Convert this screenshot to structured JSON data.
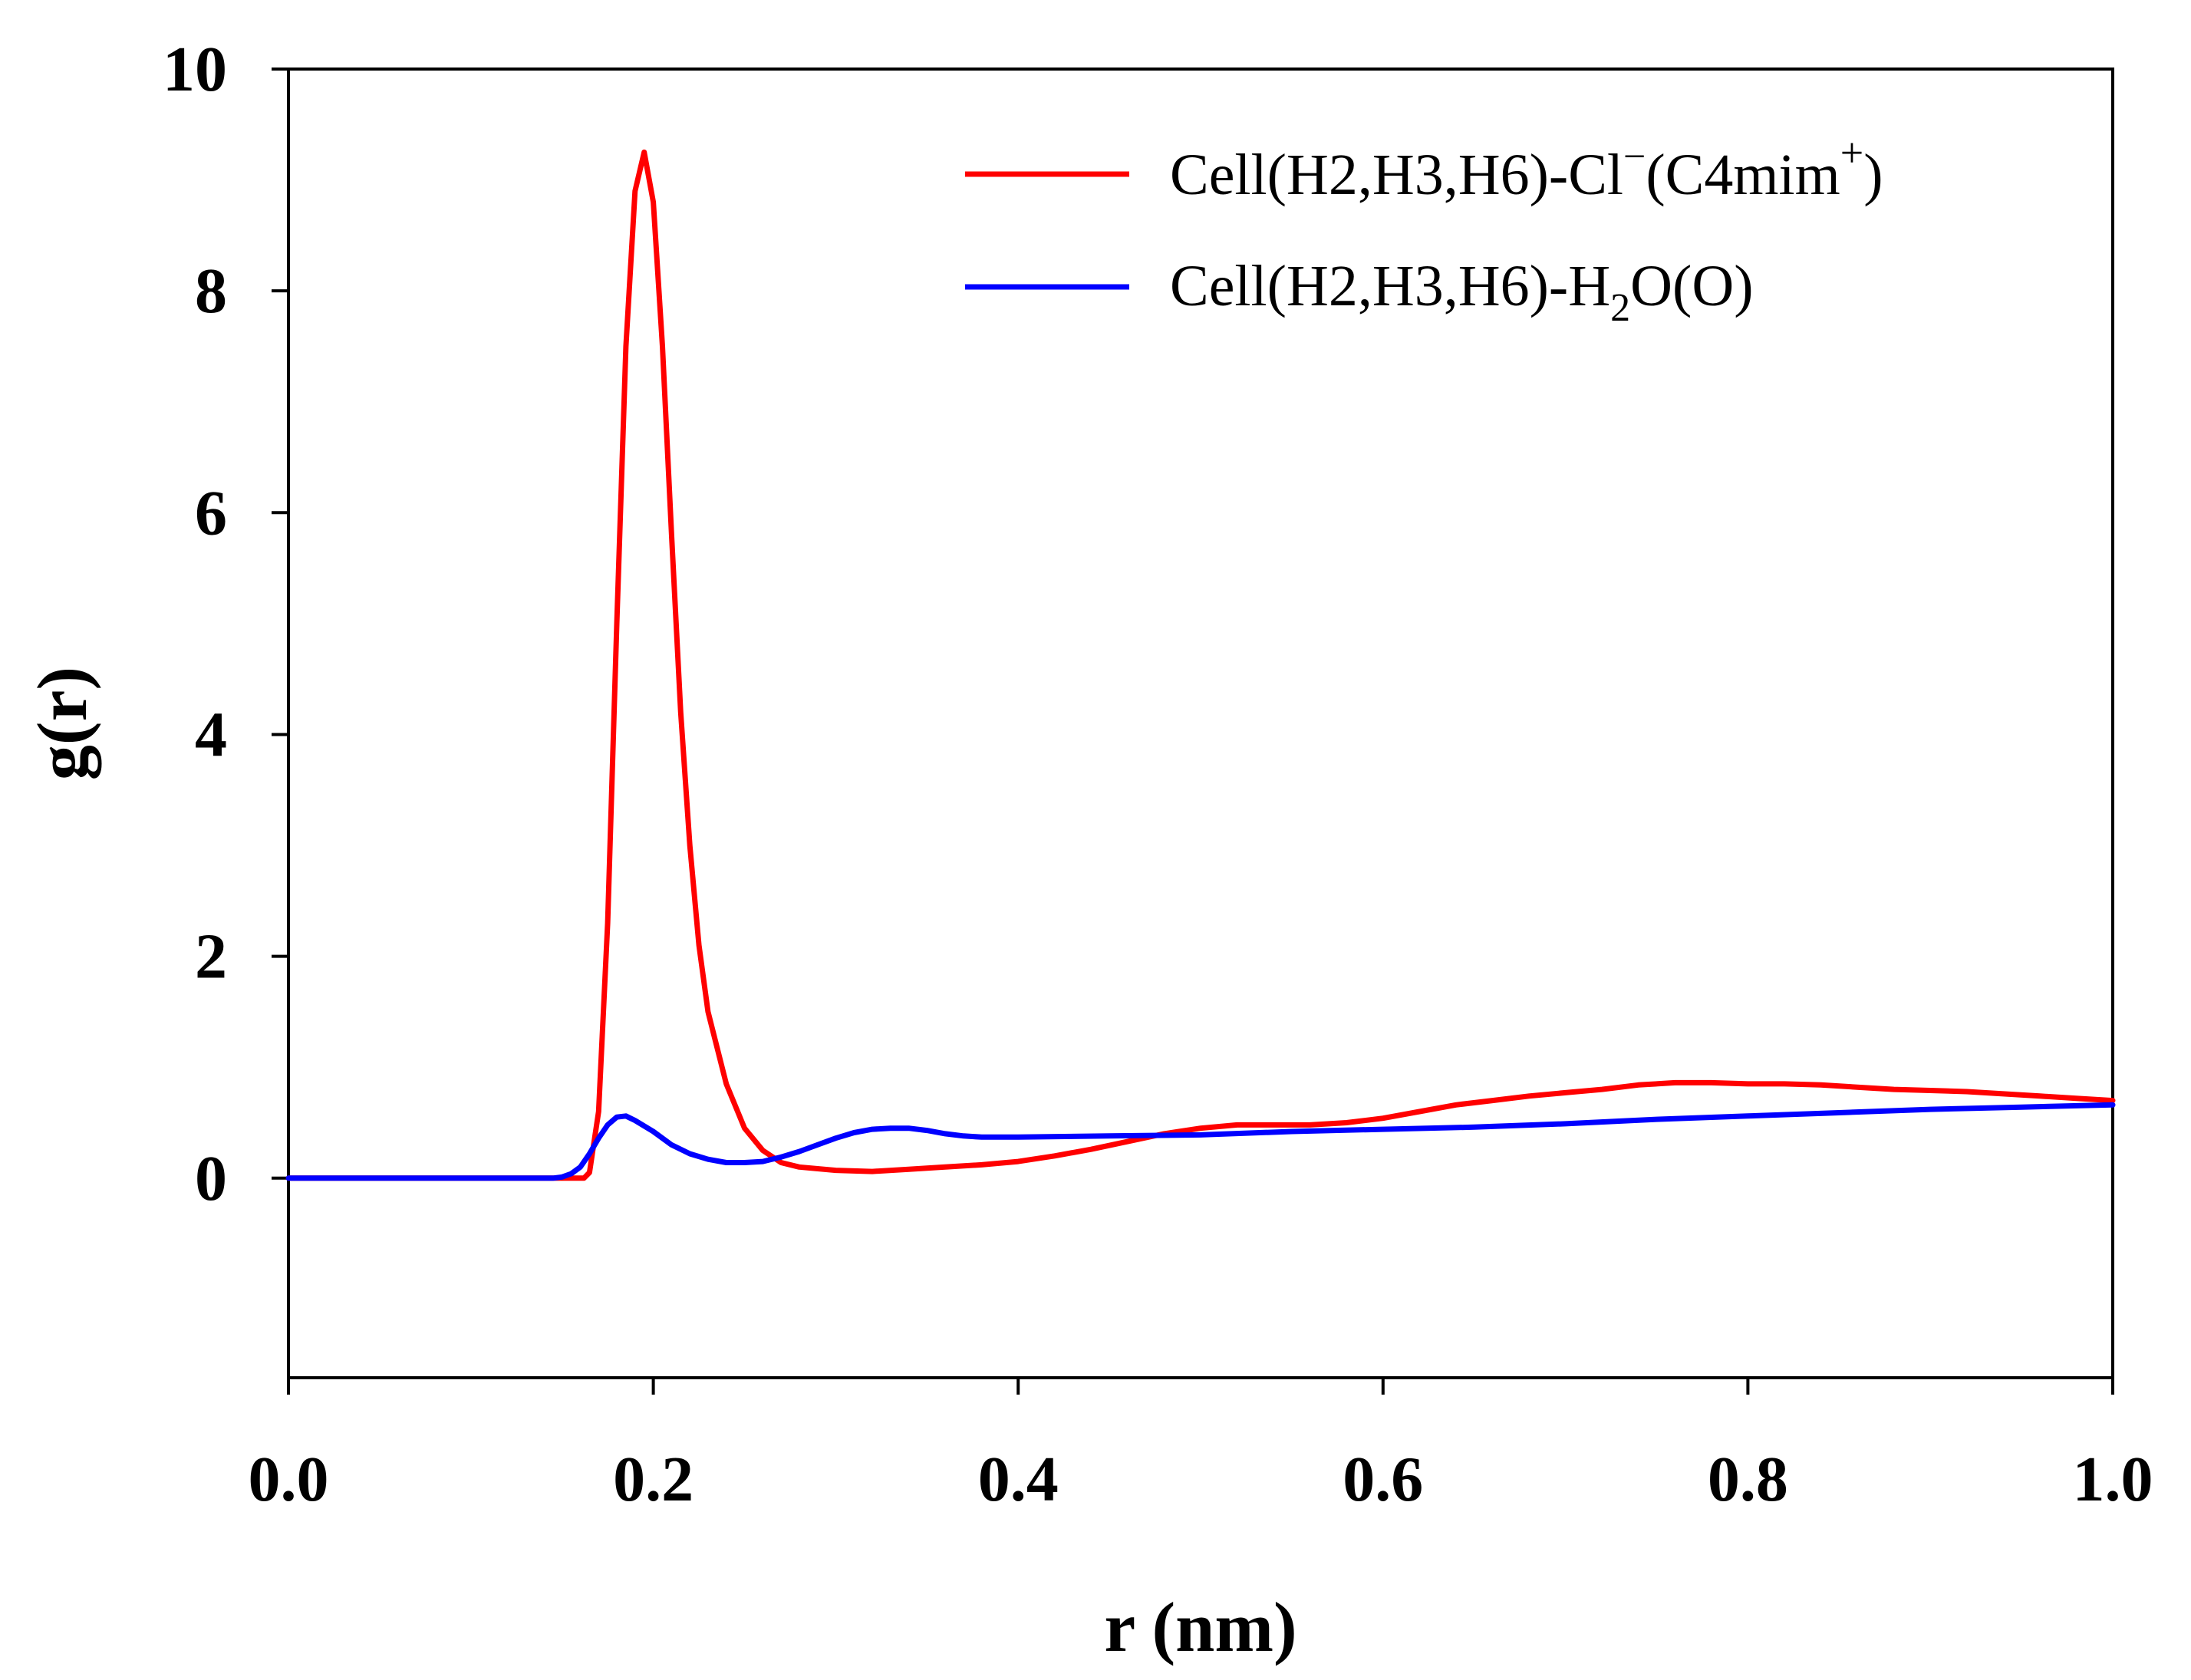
{
  "chart_data": {
    "type": "line",
    "title": "",
    "xlabel": "r (nm)",
    "ylabel": "g(r)",
    "xlim": [
      0.0,
      1.0
    ],
    "ylim": [
      -1.8,
      10
    ],
    "x_ticks": [
      0.0,
      0.2,
      0.4,
      0.6,
      0.8,
      1.0
    ],
    "x_tick_labels": [
      "0.0",
      "0.2",
      "0.4",
      "0.6",
      "0.8",
      "1.0"
    ],
    "y_ticks": [
      0,
      2,
      4,
      6,
      8,
      10
    ],
    "y_tick_labels": [
      "0",
      "2",
      "4",
      "6",
      "8",
      "10"
    ],
    "grid": false,
    "legend_position": "top-right",
    "series": [
      {
        "name": "Cell(H2,H3,H6)-Cl⁻(C4mim⁺)",
        "legend": {
          "base": "Cell(H2,H3,H6)-Cl",
          "sup1": "−",
          "mid": "(C4mim",
          "sup2": "+",
          "tail": ")"
        },
        "color": "#ff0000",
        "points": [
          [
            0.0,
            0.0
          ],
          [
            0.15,
            0.0
          ],
          [
            0.158,
            0.0
          ],
          [
            0.162,
            0.0
          ],
          [
            0.165,
            0.05
          ],
          [
            0.17,
            0.6
          ],
          [
            0.175,
            2.3
          ],
          [
            0.18,
            5.0
          ],
          [
            0.185,
            7.5
          ],
          [
            0.19,
            8.9
          ],
          [
            0.195,
            9.25
          ],
          [
            0.2,
            8.8
          ],
          [
            0.205,
            7.5
          ],
          [
            0.21,
            5.8
          ],
          [
            0.215,
            4.2
          ],
          [
            0.22,
            3.0
          ],
          [
            0.225,
            2.1
          ],
          [
            0.23,
            1.5
          ],
          [
            0.24,
            0.85
          ],
          [
            0.25,
            0.45
          ],
          [
            0.26,
            0.25
          ],
          [
            0.27,
            0.14
          ],
          [
            0.28,
            0.1
          ],
          [
            0.3,
            0.07
          ],
          [
            0.32,
            0.06
          ],
          [
            0.34,
            0.08
          ],
          [
            0.36,
            0.1
          ],
          [
            0.38,
            0.12
          ],
          [
            0.4,
            0.15
          ],
          [
            0.42,
            0.2
          ],
          [
            0.44,
            0.26
          ],
          [
            0.46,
            0.33
          ],
          [
            0.48,
            0.4
          ],
          [
            0.5,
            0.45
          ],
          [
            0.52,
            0.48
          ],
          [
            0.54,
            0.48
          ],
          [
            0.56,
            0.48
          ],
          [
            0.58,
            0.5
          ],
          [
            0.6,
            0.54
          ],
          [
            0.62,
            0.6
          ],
          [
            0.64,
            0.66
          ],
          [
            0.66,
            0.7
          ],
          [
            0.68,
            0.74
          ],
          [
            0.7,
            0.77
          ],
          [
            0.72,
            0.8
          ],
          [
            0.74,
            0.84
          ],
          [
            0.76,
            0.86
          ],
          [
            0.78,
            0.86
          ],
          [
            0.8,
            0.85
          ],
          [
            0.82,
            0.85
          ],
          [
            0.84,
            0.84
          ],
          [
            0.86,
            0.82
          ],
          [
            0.88,
            0.8
          ],
          [
            0.9,
            0.79
          ],
          [
            0.92,
            0.78
          ],
          [
            0.94,
            0.76
          ],
          [
            0.96,
            0.74
          ],
          [
            0.98,
            0.72
          ],
          [
            1.0,
            0.7
          ]
        ]
      },
      {
        "name": "Cell(H2,H3,H6)-H₂O(O)",
        "legend": {
          "base": "Cell(H2,H3,H6)-H",
          "sub": "2",
          "tail": "O(O)"
        },
        "color": "#0000ff",
        "points": [
          [
            0.0,
            0.0
          ],
          [
            0.145,
            0.0
          ],
          [
            0.15,
            0.01
          ],
          [
            0.155,
            0.04
          ],
          [
            0.16,
            0.1
          ],
          [
            0.165,
            0.22
          ],
          [
            0.17,
            0.36
          ],
          [
            0.175,
            0.48
          ],
          [
            0.18,
            0.55
          ],
          [
            0.185,
            0.56
          ],
          [
            0.19,
            0.52
          ],
          [
            0.2,
            0.42
          ],
          [
            0.21,
            0.3
          ],
          [
            0.22,
            0.22
          ],
          [
            0.23,
            0.17
          ],
          [
            0.24,
            0.14
          ],
          [
            0.25,
            0.14
          ],
          [
            0.26,
            0.15
          ],
          [
            0.27,
            0.19
          ],
          [
            0.28,
            0.24
          ],
          [
            0.29,
            0.3
          ],
          [
            0.3,
            0.36
          ],
          [
            0.31,
            0.41
          ],
          [
            0.32,
            0.44
          ],
          [
            0.33,
            0.45
          ],
          [
            0.34,
            0.45
          ],
          [
            0.35,
            0.43
          ],
          [
            0.36,
            0.4
          ],
          [
            0.37,
            0.38
          ],
          [
            0.38,
            0.37
          ],
          [
            0.4,
            0.37
          ],
          [
            0.45,
            0.38
          ],
          [
            0.5,
            0.39
          ],
          [
            0.55,
            0.42
          ],
          [
            0.6,
            0.44
          ],
          [
            0.65,
            0.46
          ],
          [
            0.7,
            0.49
          ],
          [
            0.75,
            0.53
          ],
          [
            0.8,
            0.56
          ],
          [
            0.85,
            0.59
          ],
          [
            0.9,
            0.62
          ],
          [
            0.95,
            0.64
          ],
          [
            1.0,
            0.66
          ]
        ]
      }
    ]
  }
}
